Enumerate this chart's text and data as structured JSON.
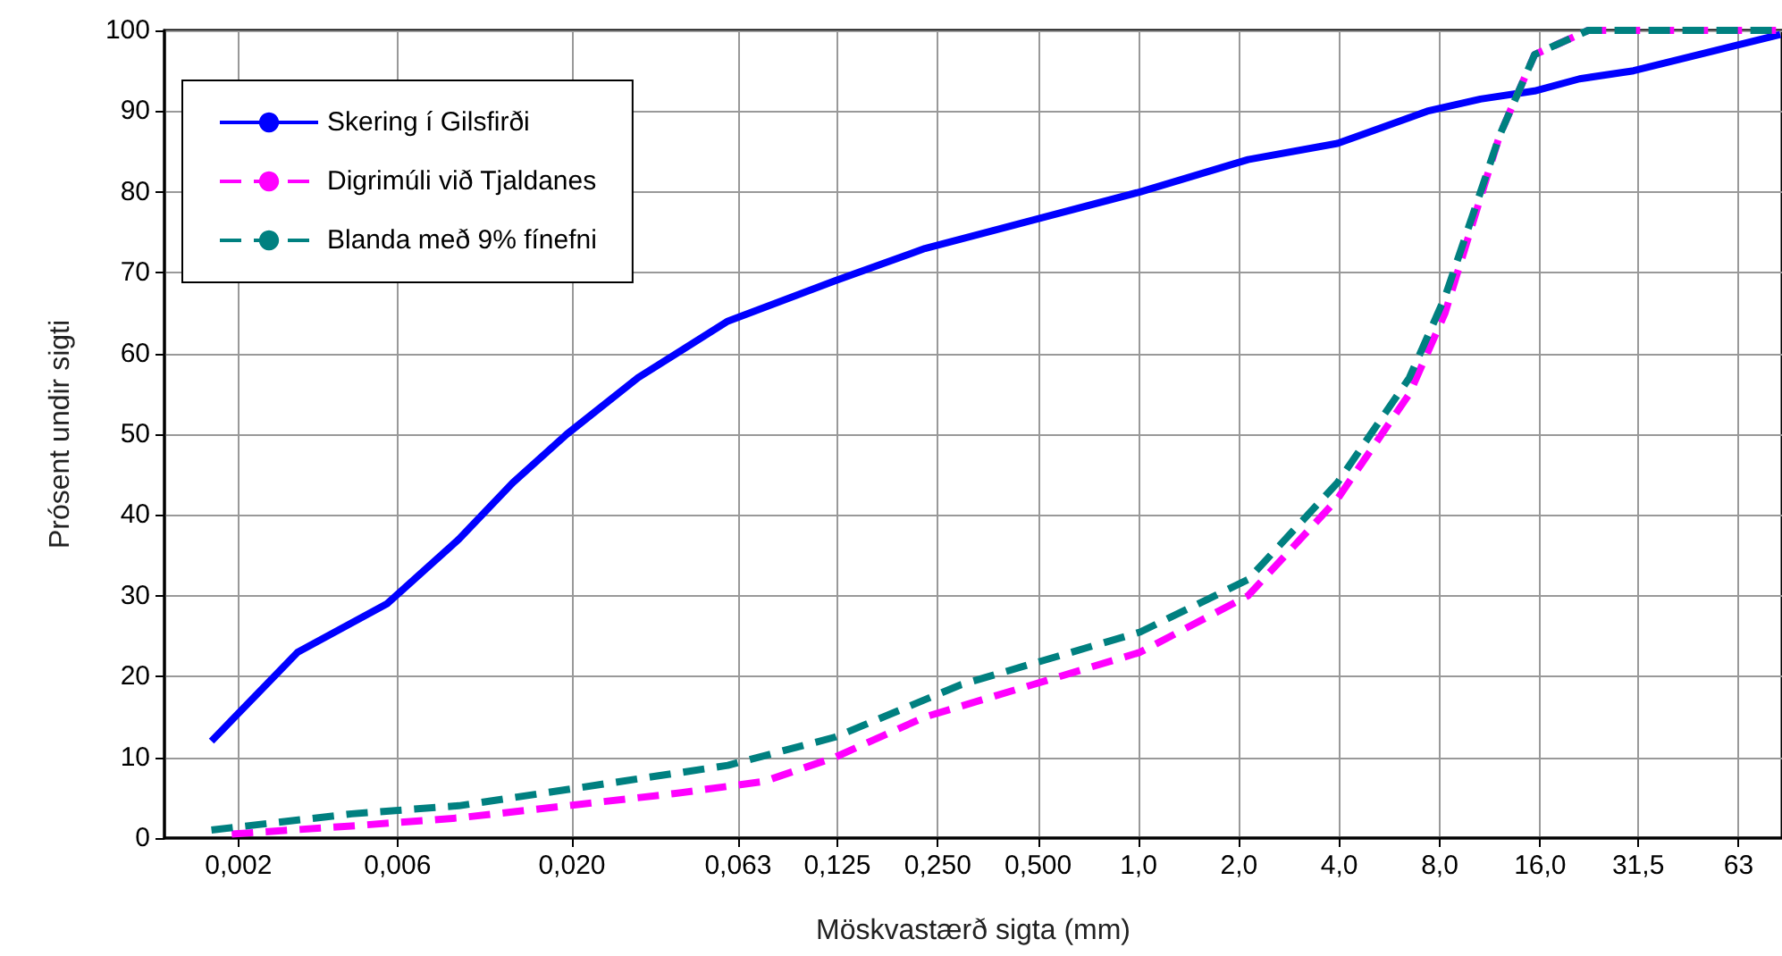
{
  "chart_data": {
    "type": "line",
    "xlabel": "Möskvastærð sigta (mm)",
    "ylabel": "Prósent undir sigti",
    "log": "x",
    "xlim": [
      0.0012,
      85
    ],
    "ylim": [
      0,
      100
    ],
    "xticks": [
      {
        "value": 0.002,
        "label": "0,002"
      },
      {
        "value": 0.006,
        "label": "0,006"
      },
      {
        "value": 0.02,
        "label": "0,020"
      },
      {
        "value": 0.063,
        "label": "0,063"
      },
      {
        "value": 0.125,
        "label": "0,125"
      },
      {
        "value": 0.25,
        "label": "0,250"
      },
      {
        "value": 0.5,
        "label": "0,500"
      },
      {
        "value": 1,
        "label": "1,0"
      },
      {
        "value": 2,
        "label": "2,0"
      },
      {
        "value": 4,
        "label": "4,0"
      },
      {
        "value": 8,
        "label": "8,0"
      },
      {
        "value": 16,
        "label": "16,0"
      },
      {
        "value": 31.5,
        "label": "31,5"
      },
      {
        "value": 63,
        "label": "63"
      }
    ],
    "yticks": [
      0,
      10,
      20,
      30,
      40,
      50,
      60,
      70,
      80,
      90,
      100
    ],
    "grid": true,
    "legend": "top left",
    "marker": "none",
    "series": [
      {
        "name": "Skering í Gilsfirði",
        "color": "#0000ff",
        "line_style": "solid",
        "x": [
          0.00166,
          0.00301,
          0.00558,
          0.00916,
          0.0133,
          0.0193,
          0.0316,
          0.0587,
          0.123,
          0.229,
          0.482,
          1.01,
          2.13,
          3.95,
          7.34,
          10.6,
          15.4,
          21.0,
          30.5,
          84
        ],
        "values": [
          12,
          23,
          29,
          37,
          44,
          50,
          57,
          64,
          69,
          73,
          76.5,
          80,
          84,
          86,
          90,
          91.5,
          92.5,
          94,
          95,
          99.5
        ]
      },
      {
        "name": "Digrimúli við Tjaldanes",
        "color": "#ff00ff",
        "line_style": "dashed",
        "x": [
          0.00191,
          0.00437,
          0.00916,
          0.0193,
          0.0404,
          0.0752,
          0.123,
          0.229,
          0.482,
          1.01,
          2.13,
          3.95,
          6.49,
          8.3,
          12.1,
          15.4,
          22.3,
          84
        ],
        "values": [
          0.5,
          1.5,
          2.5,
          4,
          5.5,
          7,
          10,
          15,
          19,
          23,
          30,
          42,
          55,
          65,
          87,
          97,
          100,
          100
        ]
      },
      {
        "name": "Blanda með 9% fínefni",
        "color": "#008080",
        "line_style": "dashed",
        "x": [
          0.00166,
          0.00437,
          0.00916,
          0.0193,
          0.0587,
          0.123,
          0.294,
          1.01,
          2.13,
          3.95,
          6.49,
          8.3,
          12.1,
          15.4,
          22.3,
          84
        ],
        "values": [
          1,
          3,
          4,
          6,
          9,
          12.5,
          19,
          25.5,
          32,
          44,
          57,
          67,
          87,
          97,
          100,
          100
        ]
      }
    ]
  }
}
